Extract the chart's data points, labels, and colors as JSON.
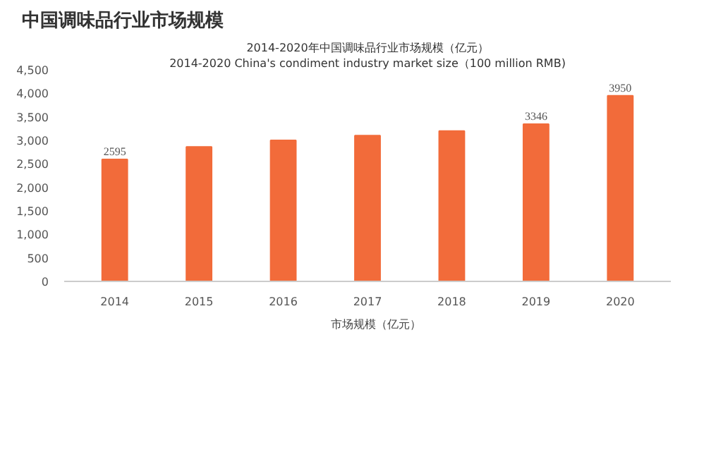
{
  "chart_data": {
    "type": "bar",
    "title": "中国调味品行业市场规模",
    "subtitle": "2014-2020年中国调味品行业市场规模（亿元）",
    "annotations": [
      "2014-2020 China's condiment industry market size（100 million RMB)"
    ],
    "categories": [
      "2014",
      "2015",
      "2016",
      "2017",
      "2018",
      "2019",
      "2020"
    ],
    "series": [
      {
        "name": "市场规模（亿元）",
        "color": "#f26b3a",
        "values": [
          2595,
          2860,
          3000,
          3100,
          3200,
          3346,
          3950
        ],
        "value_labels": [
          "2595",
          null,
          null,
          null,
          null,
          "3346",
          "3950"
        ]
      }
    ],
    "ylim": [
      0,
      4500
    ],
    "yticks": [
      0,
      {
        "value": 500,
        "label": "500"
      },
      {
        "value": 1000,
        "label": "1,000"
      },
      {
        "value": 1500,
        "label": "1,500"
      },
      {
        "value": 2000,
        "label": "2,000"
      },
      {
        "value": 2500,
        "label": "2,500"
      },
      {
        "value": 3000,
        "label": "3,000"
      },
      {
        "value": 3500,
        "label": "3,500"
      },
      {
        "value": 4000,
        "label": "4,000"
      },
      {
        "value": 4500,
        "label": "4,500"
      }
    ],
    "grid": false,
    "legend": "bottom"
  }
}
